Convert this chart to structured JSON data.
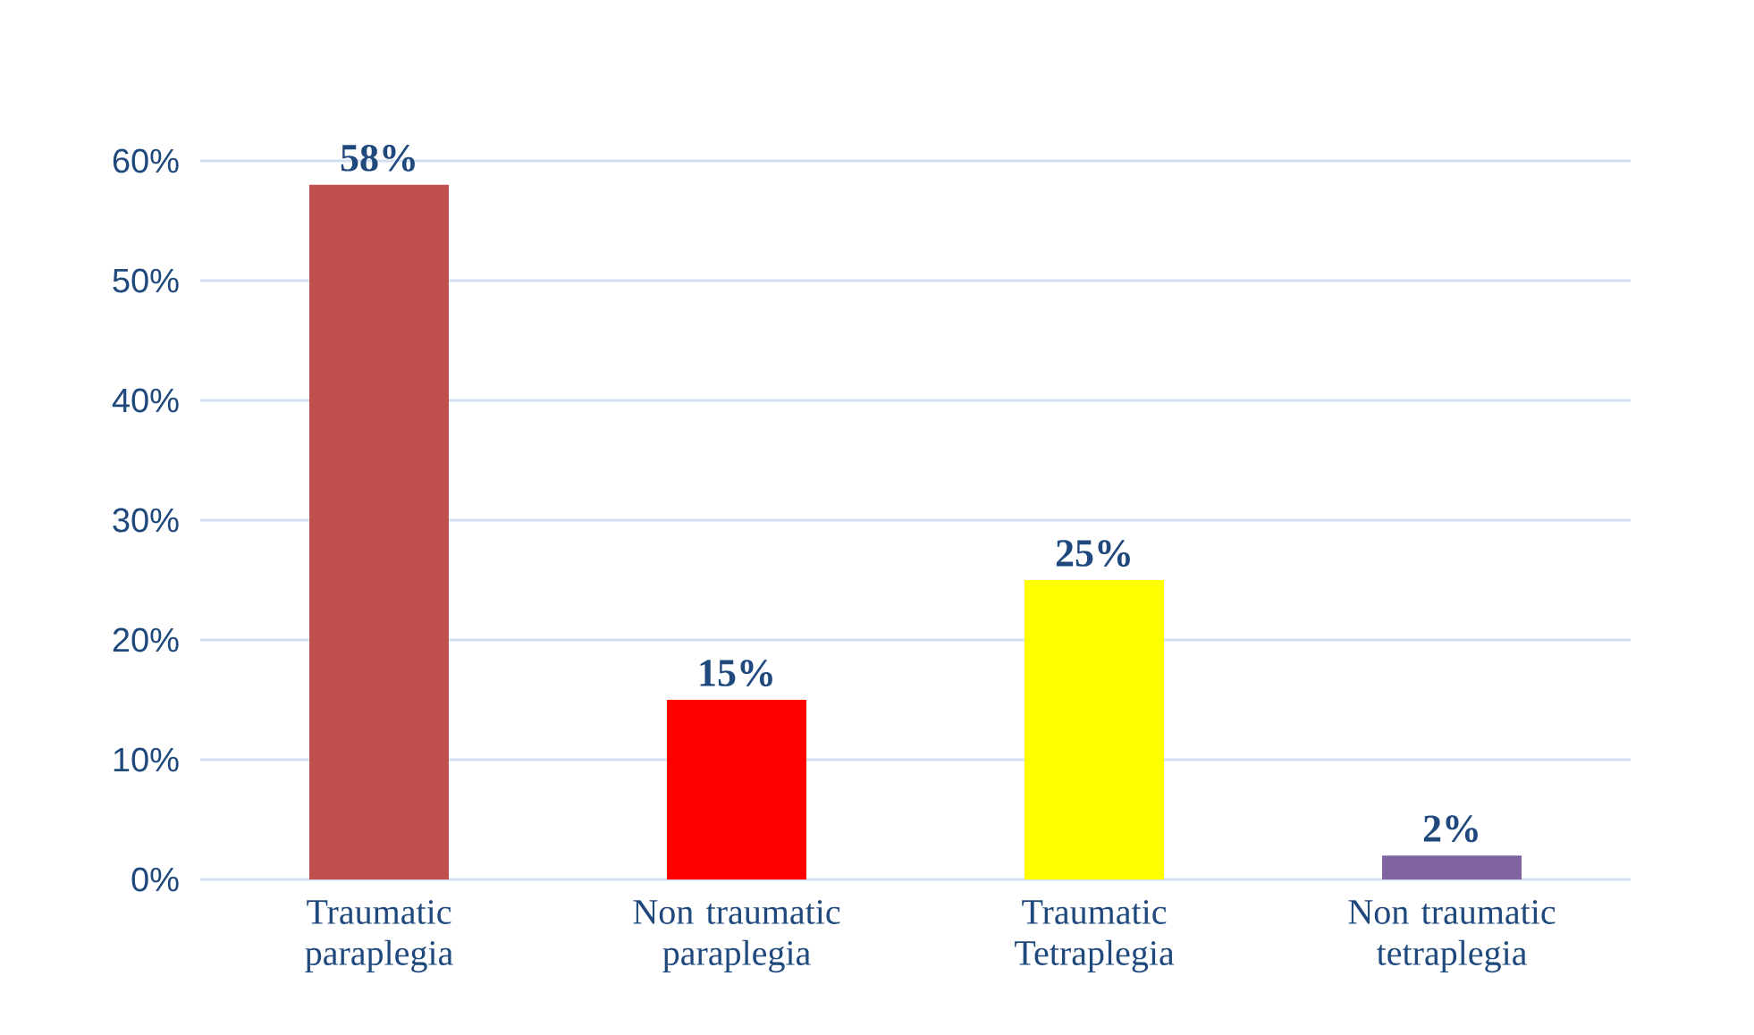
{
  "chart_data": {
    "type": "bar",
    "categories": [
      "Traumatic paraplegia",
      "Non traumatic paraplegia",
      "Traumatic Tetraplegia",
      "Non traumatic tetraplegia"
    ],
    "values": [
      58,
      15,
      25,
      2
    ],
    "colors": [
      "#c0504d",
      "#ff0000",
      "#ffff00",
      "#8064a2"
    ],
    "value_labels": [
      "58%",
      "15%",
      "25%",
      "2%"
    ],
    "ylim": [
      0,
      60
    ],
    "yticks": [
      {
        "value": 0,
        "label": "0%"
      },
      {
        "value": 10,
        "label": "10%"
      },
      {
        "value": 20,
        "label": "20%"
      },
      {
        "value": 30,
        "label": "30%"
      },
      {
        "value": 40,
        "label": "40%"
      },
      {
        "value": 50,
        "label": "50%"
      },
      {
        "value": 60,
        "label": "60%"
      }
    ],
    "grid": "y"
  }
}
